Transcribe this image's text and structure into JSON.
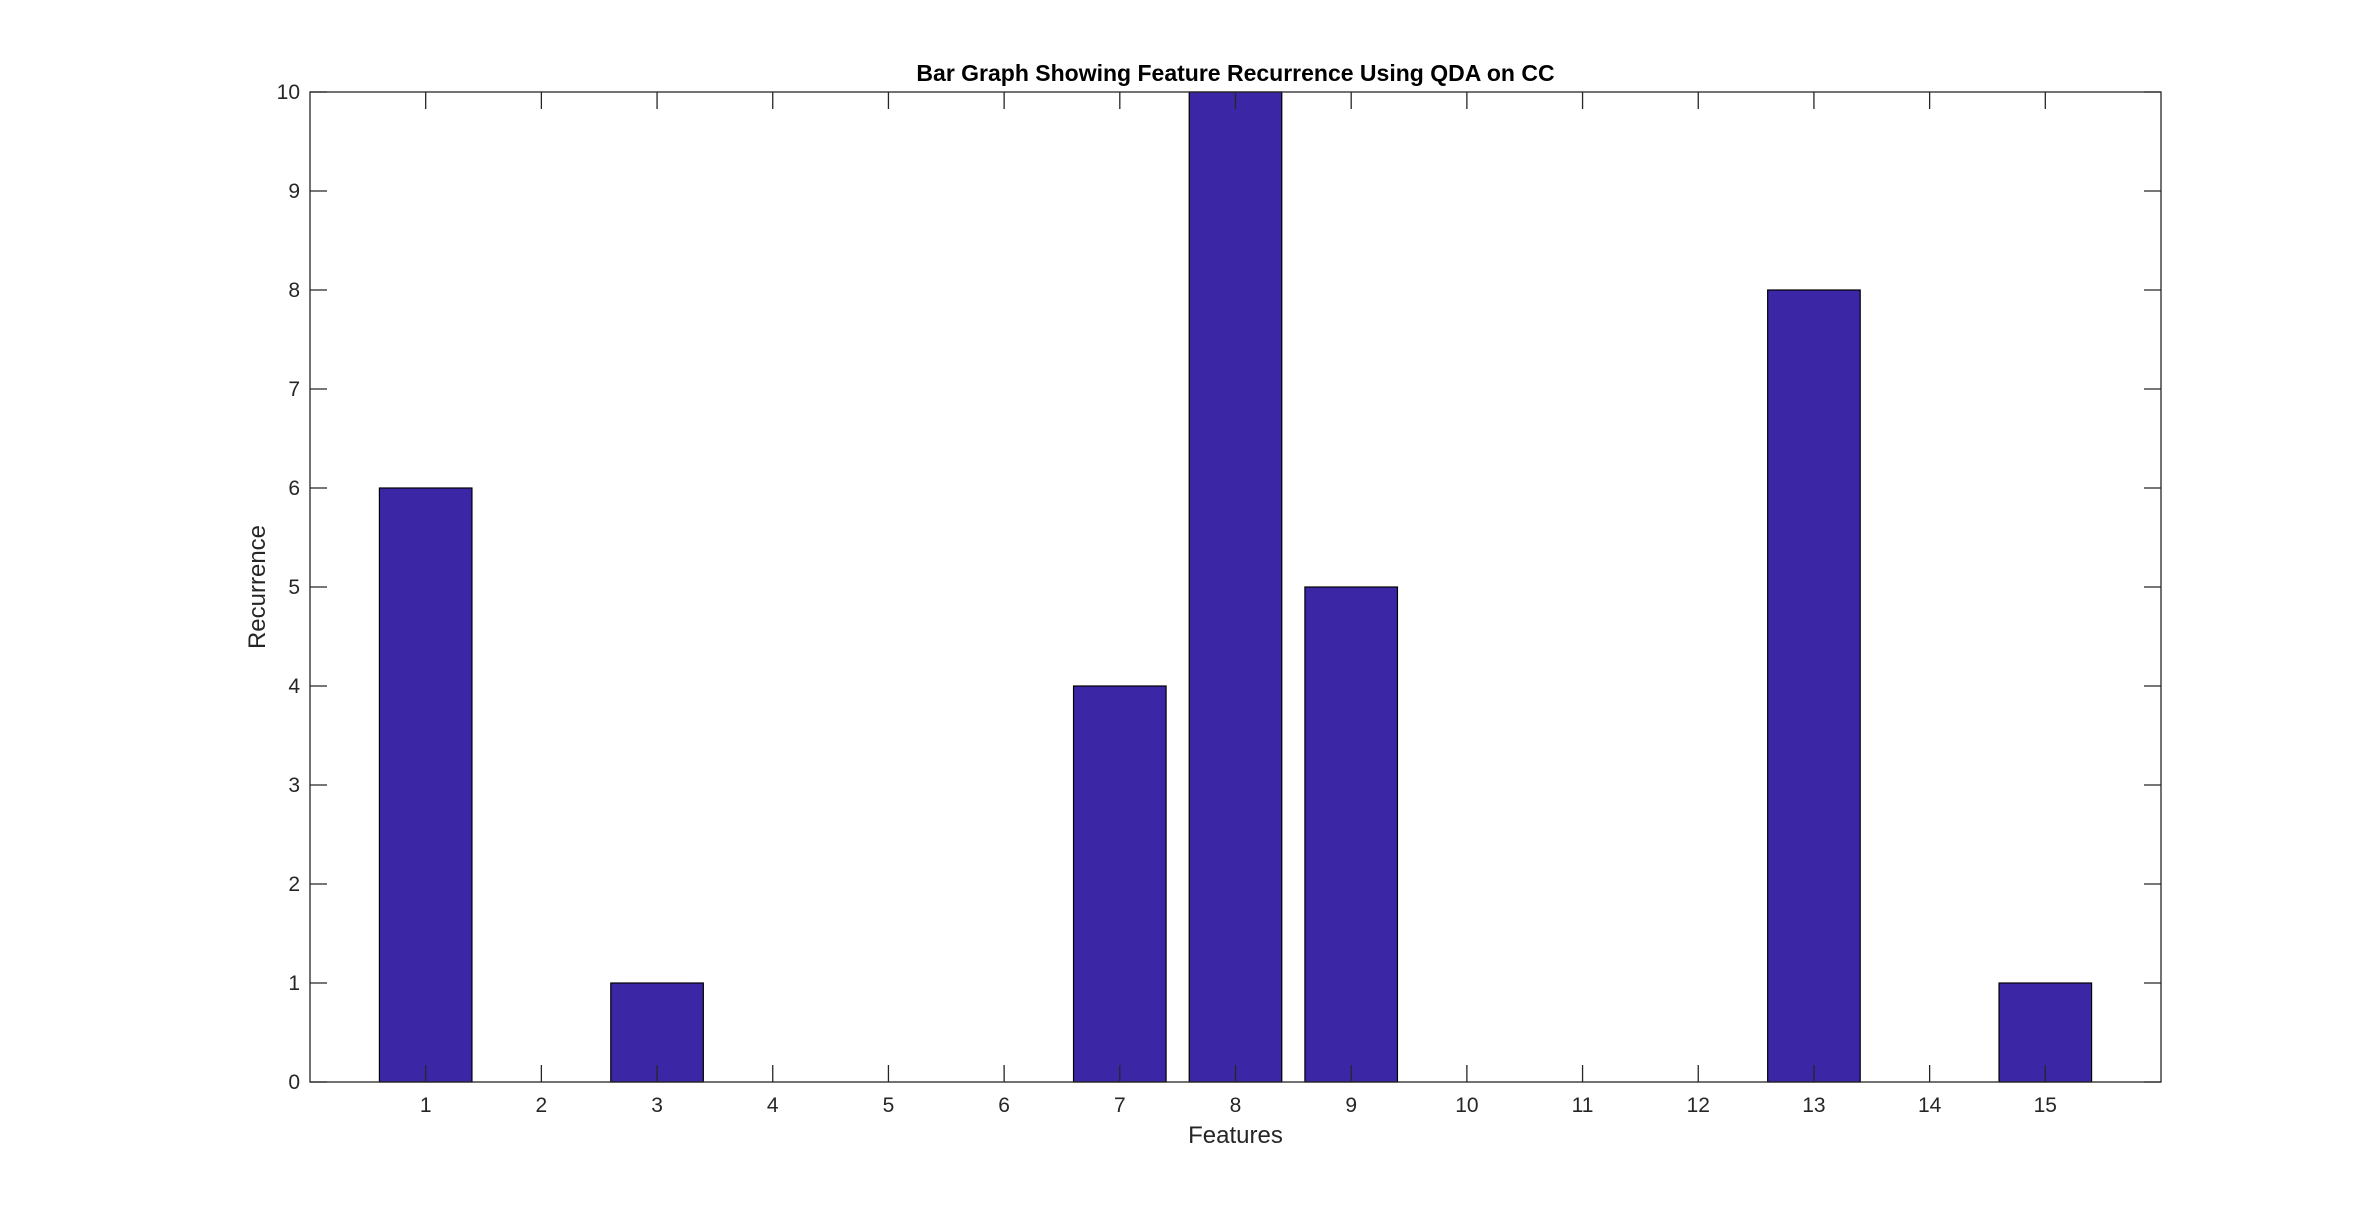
{
  "chart_data": {
    "type": "bar",
    "title": "Bar Graph Showing Feature Recurrence Using QDA on CC",
    "xlabel": "Features",
    "ylabel": "Recurrence",
    "categories": [
      "1",
      "2",
      "3",
      "4",
      "5",
      "6",
      "7",
      "8",
      "9",
      "10",
      "11",
      "12",
      "13",
      "14",
      "15"
    ],
    "values": [
      6,
      0,
      1,
      0,
      0,
      0,
      4,
      10,
      5,
      0,
      0,
      0,
      8,
      0,
      1
    ],
    "ylim": [
      0,
      10
    ],
    "yticks": [
      0,
      1,
      2,
      3,
      4,
      5,
      6,
      7,
      8,
      9,
      10
    ],
    "grid": false,
    "legend": "none",
    "bar_color": "#3b27a6",
    "bar_edge_color": "#000000",
    "axis_color": "#262626"
  }
}
